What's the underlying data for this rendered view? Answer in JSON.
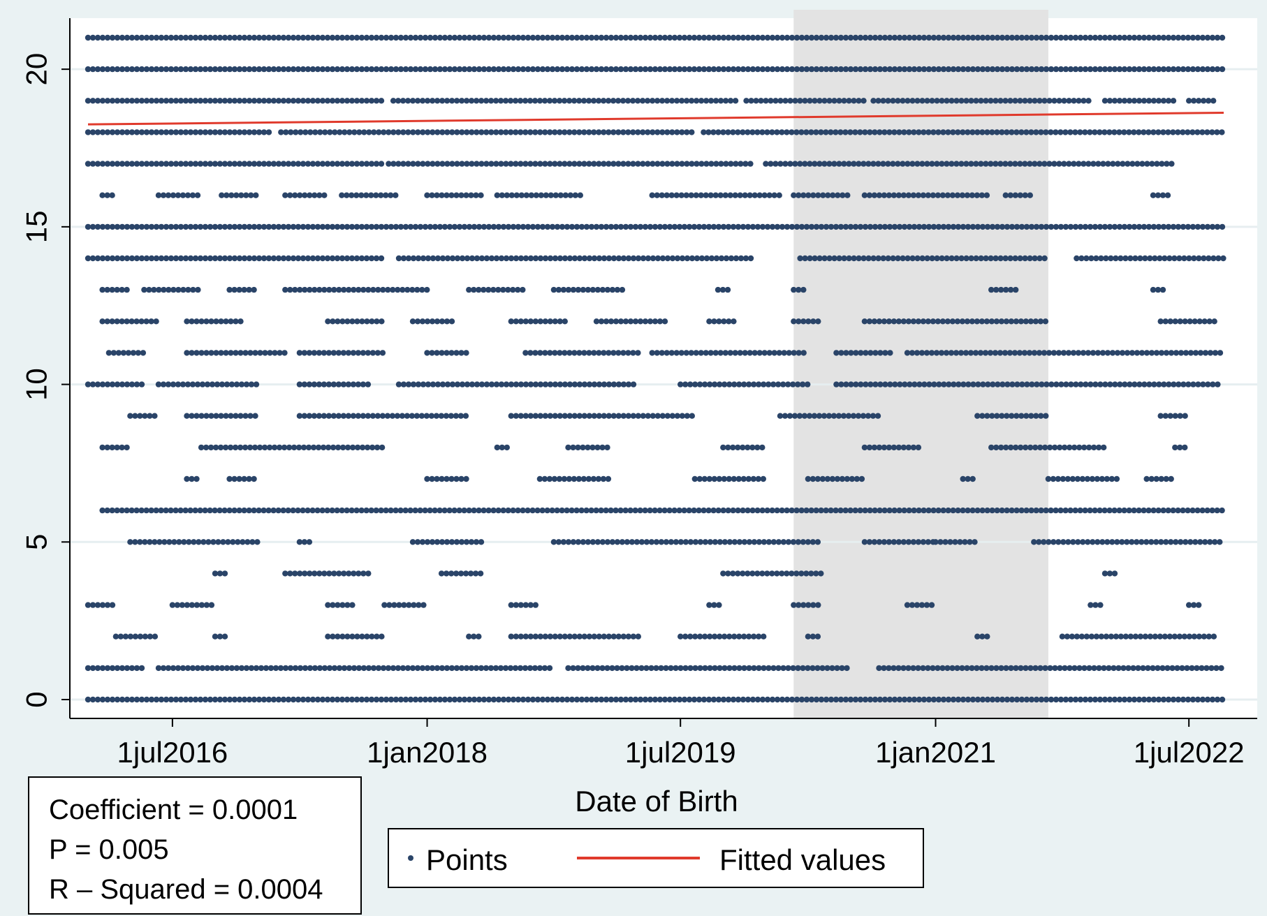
{
  "chart_data": {
    "type": "scatter",
    "title": "",
    "xlabel": "Date of Birth",
    "ylabel": "",
    "x_type": "date",
    "x_tick_labels": [
      {
        "date": "2016-07-01",
        "label": "1jul2016"
      },
      {
        "date": "2018-01-01",
        "label": "1jan2018"
      },
      {
        "date": "2019-07-01",
        "label": "1jul2019"
      },
      {
        "date": "2021-01-01",
        "label": "1jan2021"
      },
      {
        "date": "2022-07-01",
        "label": "1jul2022"
      }
    ],
    "xlim": [
      "2016-01-01",
      "2022-09-14"
    ],
    "y_ticks": [
      0,
      5,
      10,
      15,
      20
    ],
    "ylim": [
      0,
      21
    ],
    "grid": true,
    "shaded_region": {
      "x_start": "2020-03-01",
      "x_end": "2021-09-01",
      "color": "#e3e3e3"
    },
    "series": [
      {
        "name": "Points",
        "kind": "scatter",
        "color": "#2a4468",
        "rows": [
          {
            "y": 21,
            "ranges": [
              [
                "2016-01-01",
                "2022-09-14"
              ]
            ]
          },
          {
            "y": 20,
            "ranges": [
              [
                "2016-01-01",
                "2022-09-14"
              ]
            ]
          },
          {
            "y": 19,
            "ranges": [
              [
                "2016-01-01",
                "2017-10-01"
              ],
              [
                "2017-10-20",
                "2019-11-01"
              ],
              [
                "2019-11-20",
                "2020-08-01"
              ],
              [
                "2020-08-20",
                "2021-12-01"
              ],
              [
                "2022-01-01",
                "2022-06-01"
              ],
              [
                "2022-07-01",
                "2022-09-01"
              ]
            ]
          },
          {
            "y": 18,
            "ranges": [
              [
                "2016-01-01",
                "2017-02-01"
              ],
              [
                "2017-02-20",
                "2019-08-01"
              ],
              [
                "2019-08-20",
                "2022-09-14"
              ]
            ]
          },
          {
            "y": 17,
            "ranges": [
              [
                "2016-01-01",
                "2017-10-01"
              ],
              [
                "2017-10-10",
                "2019-12-01"
              ],
              [
                "2020-01-01",
                "2022-06-01"
              ]
            ]
          },
          {
            "y": 16,
            "ranges": [
              [
                "2016-02-01",
                "2016-03-01"
              ],
              [
                "2016-06-01",
                "2016-09-01"
              ],
              [
                "2016-10-15",
                "2017-01-01"
              ],
              [
                "2017-03-01",
                "2017-06-01"
              ],
              [
                "2017-07-01",
                "2017-11-01"
              ],
              [
                "2018-01-01",
                "2018-05-01"
              ],
              [
                "2018-06-01",
                "2018-12-01"
              ],
              [
                "2019-05-01",
                "2020-02-01"
              ],
              [
                "2020-03-01",
                "2020-07-01"
              ],
              [
                "2020-08-01",
                "2021-05-01"
              ],
              [
                "2021-06-01",
                "2021-08-01"
              ],
              [
                "2022-04-15",
                "2022-05-20"
              ]
            ]
          },
          {
            "y": 15,
            "ranges": [
              [
                "2016-01-01",
                "2022-09-14"
              ]
            ]
          },
          {
            "y": 14,
            "ranges": [
              [
                "2016-01-01",
                "2017-10-01"
              ],
              [
                "2017-11-01",
                "2019-12-01"
              ],
              [
                "2020-03-15",
                "2021-09-01"
              ],
              [
                "2021-11-01",
                "2022-09-14"
              ]
            ]
          },
          {
            "y": 13,
            "ranges": [
              [
                "2016-02-01",
                "2016-04-01"
              ],
              [
                "2016-05-01",
                "2016-09-01"
              ],
              [
                "2016-11-01",
                "2017-01-01"
              ],
              [
                "2017-03-01",
                "2018-01-01"
              ],
              [
                "2018-04-01",
                "2018-08-01"
              ],
              [
                "2018-10-01",
                "2019-03-01"
              ],
              [
                "2019-09-20",
                "2019-10-20"
              ],
              [
                "2020-03-01",
                "2020-04-01"
              ],
              [
                "2021-05-01",
                "2021-07-01"
              ],
              [
                "2022-04-15",
                "2022-05-15"
              ]
            ]
          },
          {
            "y": 12,
            "ranges": [
              [
                "2016-02-01",
                "2016-06-01"
              ],
              [
                "2016-08-01",
                "2016-12-01"
              ],
              [
                "2017-06-01",
                "2017-10-01"
              ],
              [
                "2017-12-01",
                "2018-03-01"
              ],
              [
                "2018-07-01",
                "2018-11-01"
              ],
              [
                "2019-01-01",
                "2019-06-01"
              ],
              [
                "2019-09-01",
                "2019-11-01"
              ],
              [
                "2020-03-01",
                "2020-05-01"
              ],
              [
                "2020-08-01",
                "2021-09-01"
              ],
              [
                "2022-05-01",
                "2022-09-01"
              ]
            ]
          },
          {
            "y": 11,
            "ranges": [
              [
                "2016-02-15",
                "2016-05-01"
              ],
              [
                "2016-08-01",
                "2017-03-01"
              ],
              [
                "2017-04-01",
                "2017-10-01"
              ],
              [
                "2018-01-01",
                "2018-04-01"
              ],
              [
                "2018-08-01",
                "2019-04-01"
              ],
              [
                "2019-05-01",
                "2020-04-01"
              ],
              [
                "2020-06-01",
                "2020-10-01"
              ],
              [
                "2020-11-01",
                "2022-09-14"
              ]
            ]
          },
          {
            "y": 10,
            "ranges": [
              [
                "2016-01-01",
                "2016-05-01"
              ],
              [
                "2016-06-01",
                "2017-01-01"
              ],
              [
                "2017-04-01",
                "2017-09-01"
              ],
              [
                "2017-11-01",
                "2019-04-01"
              ],
              [
                "2019-07-01",
                "2020-04-01"
              ],
              [
                "2020-06-01",
                "2022-09-01"
              ]
            ]
          },
          {
            "y": 9,
            "ranges": [
              [
                "2016-04-01",
                "2016-06-01"
              ],
              [
                "2016-08-01",
                "2017-01-01"
              ],
              [
                "2017-04-01",
                "2018-04-01"
              ],
              [
                "2018-07-01",
                "2019-08-01"
              ],
              [
                "2020-02-01",
                "2020-09-01"
              ],
              [
                "2021-04-01",
                "2021-09-01"
              ],
              [
                "2022-05-01",
                "2022-07-01"
              ]
            ]
          },
          {
            "y": 8,
            "ranges": [
              [
                "2016-02-01",
                "2016-04-01"
              ],
              [
                "2016-09-01",
                "2017-10-01"
              ],
              [
                "2018-06-01",
                "2018-07-01"
              ],
              [
                "2018-11-01",
                "2019-02-01"
              ],
              [
                "2019-10-01",
                "2020-01-01"
              ],
              [
                "2020-08-01",
                "2020-12-01"
              ],
              [
                "2021-05-01",
                "2022-01-01"
              ],
              [
                "2022-06-01",
                "2022-07-01"
              ]
            ]
          },
          {
            "y": 7,
            "ranges": [
              [
                "2016-08-01",
                "2016-09-01"
              ],
              [
                "2016-11-01",
                "2017-01-01"
              ],
              [
                "2018-01-01",
                "2018-04-01"
              ],
              [
                "2018-09-01",
                "2019-02-01"
              ],
              [
                "2019-08-01",
                "2020-01-01"
              ],
              [
                "2020-04-01",
                "2020-08-01"
              ],
              [
                "2021-03-01",
                "2021-04-01"
              ],
              [
                "2021-09-01",
                "2022-02-01"
              ],
              [
                "2022-04-01",
                "2022-06-01"
              ]
            ]
          },
          {
            "y": 6,
            "ranges": [
              [
                "2016-02-01",
                "2022-09-14"
              ]
            ]
          },
          {
            "y": 5,
            "ranges": [
              [
                "2016-04-01",
                "2017-01-01"
              ],
              [
                "2017-04-01",
                "2017-05-01"
              ],
              [
                "2017-12-01",
                "2018-05-01"
              ],
              [
                "2018-10-01",
                "2020-05-01"
              ],
              [
                "2020-08-01",
                "2021-01-01"
              ],
              [
                "2021-01-01",
                "2021-04-01"
              ],
              [
                "2021-08-01",
                "2022-09-14"
              ]
            ]
          },
          {
            "y": 4,
            "ranges": [
              [
                "2016-10-01",
                "2016-11-01"
              ],
              [
                "2017-03-01",
                "2017-09-01"
              ],
              [
                "2018-02-01",
                "2018-05-01"
              ],
              [
                "2019-10-01",
                "2020-05-01"
              ],
              [
                "2022-01-01",
                "2022-02-01"
              ]
            ]
          },
          {
            "y": 3,
            "ranges": [
              [
                "2016-01-01",
                "2016-03-01"
              ],
              [
                "2016-07-01",
                "2016-10-01"
              ],
              [
                "2017-06-01",
                "2017-08-01"
              ],
              [
                "2017-10-01",
                "2018-01-01"
              ],
              [
                "2018-07-01",
                "2018-09-01"
              ],
              [
                "2019-09-01",
                "2019-10-01"
              ],
              [
                "2020-03-01",
                "2020-05-01"
              ],
              [
                "2020-11-01",
                "2021-01-01"
              ],
              [
                "2021-12-01",
                "2022-01-01"
              ],
              [
                "2022-07-01",
                "2022-08-01"
              ]
            ]
          },
          {
            "y": 2,
            "ranges": [
              [
                "2016-03-01",
                "2016-06-01"
              ],
              [
                "2016-10-01",
                "2016-11-01"
              ],
              [
                "2017-06-01",
                "2017-10-01"
              ],
              [
                "2018-04-01",
                "2018-05-01"
              ],
              [
                "2018-07-01",
                "2019-04-01"
              ],
              [
                "2019-07-01",
                "2020-01-01"
              ],
              [
                "2020-04-01",
                "2020-05-01"
              ],
              [
                "2021-04-01",
                "2021-05-01"
              ],
              [
                "2021-10-01",
                "2022-09-01"
              ]
            ]
          },
          {
            "y": 1,
            "ranges": [
              [
                "2016-01-01",
                "2016-05-01"
              ],
              [
                "2016-06-01",
                "2018-10-01"
              ],
              [
                "2018-11-01",
                "2020-07-01"
              ],
              [
                "2020-09-01",
                "2022-09-14"
              ]
            ]
          },
          {
            "y": 0,
            "ranges": [
              [
                "2016-01-01",
                "2022-09-14"
              ]
            ]
          }
        ]
      },
      {
        "name": "Fitted values",
        "kind": "line",
        "color": "#e03a2c",
        "x": [
          "2016-01-01",
          "2022-09-14"
        ],
        "y": [
          18.25,
          18.62
        ]
      }
    ]
  },
  "stats": {
    "coefficient": "Coefficient = 0.0001",
    "p": "P = 0.005",
    "r_squared": "R – Squared = 0.0004"
  },
  "legend": {
    "placement": "bottom-center",
    "points_label": "Points",
    "fitted_label": "Fitted values"
  }
}
